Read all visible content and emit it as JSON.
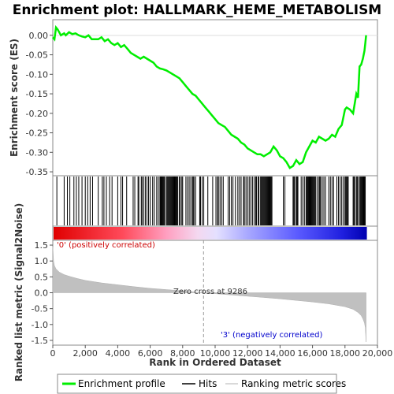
{
  "chart_data": [
    {
      "type": "line",
      "title": "Enrichment plot: HALLMARK_HEME_METABOLISM",
      "ylabel": "Enrichment score (ES)",
      "ylim": [
        -0.36,
        0.04
      ],
      "yticks": [
        0.0,
        -0.05,
        -0.1,
        -0.15,
        -0.2,
        -0.25,
        -0.3,
        -0.35
      ],
      "ytick_labels": [
        "0.00",
        "-0.05",
        "-0.10",
        "-0.15",
        "-0.20",
        "-0.25",
        "-0.30",
        "-0.35"
      ],
      "color": "#00ee00",
      "series": [
        {
          "name": "Enrichment profile",
          "x": [
            0,
            100,
            200,
            300,
            500,
            700,
            800,
            1000,
            1200,
            1400,
            1600,
            1800,
            2000,
            2200,
            2400,
            2600,
            2800,
            3000,
            3200,
            3400,
            3600,
            3800,
            4000,
            4200,
            4400,
            4600,
            4800,
            5000,
            5200,
            5400,
            5600,
            5800,
            6000,
            6200,
            6400,
            6600,
            6800,
            7000,
            7200,
            7400,
            7600,
            7800,
            8000,
            8200,
            8400,
            8600,
            8800,
            9000,
            9200,
            9400,
            9600,
            9800,
            10000,
            10200,
            10400,
            10600,
            10800,
            11000,
            11200,
            11400,
            11600,
            11800,
            12000,
            12200,
            12400,
            12600,
            12800,
            13000,
            13200,
            13400,
            13600,
            13800,
            14000,
            14200,
            14400,
            14600,
            14800,
            15000,
            15200,
            15400,
            15600,
            15800,
            16000,
            16200,
            16400,
            16600,
            16800,
            17000,
            17200,
            17400,
            17600,
            17800,
            18000,
            18100,
            18300,
            18500,
            18700,
            18800,
            18900,
            19000,
            19100,
            19200,
            19250,
            19300
          ],
          "y": [
            -0.005,
            -0.01,
            0.02,
            0.015,
            0.0,
            0.005,
            0.0,
            0.008,
            0.003,
            0.005,
            0.0,
            -0.003,
            -0.005,
            0.0,
            -0.01,
            -0.01,
            -0.01,
            -0.005,
            -0.015,
            -0.01,
            -0.02,
            -0.025,
            -0.02,
            -0.03,
            -0.025,
            -0.035,
            -0.045,
            -0.05,
            -0.055,
            -0.06,
            -0.055,
            -0.06,
            -0.065,
            -0.07,
            -0.08,
            -0.085,
            -0.087,
            -0.09,
            -0.095,
            -0.1,
            -0.105,
            -0.11,
            -0.12,
            -0.13,
            -0.14,
            -0.15,
            -0.155,
            -0.165,
            -0.175,
            -0.185,
            -0.195,
            -0.205,
            -0.215,
            -0.225,
            -0.23,
            -0.235,
            -0.245,
            -0.255,
            -0.26,
            -0.265,
            -0.275,
            -0.28,
            -0.29,
            -0.295,
            -0.3,
            -0.305,
            -0.305,
            -0.31,
            -0.305,
            -0.3,
            -0.285,
            -0.295,
            -0.31,
            -0.315,
            -0.325,
            -0.34,
            -0.335,
            -0.32,
            -0.33,
            -0.325,
            -0.3,
            -0.285,
            -0.27,
            -0.275,
            -0.26,
            -0.265,
            -0.27,
            -0.265,
            -0.255,
            -0.26,
            -0.24,
            -0.23,
            -0.19,
            -0.185,
            -0.19,
            -0.2,
            -0.15,
            -0.16,
            -0.08,
            -0.075,
            -0.06,
            -0.04,
            -0.02,
            0.0
          ]
        }
      ]
    },
    {
      "type": "scatter",
      "series": [
        {
          "name": "Hits",
          "x": [
            250,
            700,
            900,
            1050,
            1300,
            1450,
            1600,
            1800,
            2000,
            2150,
            2300,
            2450,
            2800,
            3050,
            3150,
            3300,
            3500,
            3650,
            4000,
            4200,
            4300,
            4550,
            4950,
            5050,
            5250,
            5300,
            5450,
            5500,
            5600,
            5700,
            5800,
            5900,
            6000,
            6150,
            6250,
            6400,
            6500,
            6600,
            6650,
            6700,
            6750,
            6800,
            6850,
            6900,
            7000,
            7050,
            7100,
            7150,
            7200,
            7250,
            7300,
            7350,
            7400,
            7450,
            7500,
            7550,
            7600,
            7650,
            7700,
            7800,
            7850,
            7950,
            8000,
            8200,
            8300,
            8400,
            8500,
            8600,
            8650,
            8700,
            8800,
            9050,
            9100,
            9200,
            9300,
            9550,
            9850,
            10050,
            10150,
            10200,
            10300,
            10400,
            10500,
            10800,
            10900,
            11000,
            11100,
            11250,
            11400,
            11500,
            11600,
            11750,
            11800,
            11900,
            12000,
            12100,
            12200,
            12300,
            12400,
            12500,
            12550,
            12650,
            12700,
            12800,
            12850,
            12900,
            12950,
            13000,
            13050,
            13100,
            13150,
            13200,
            13250,
            13300,
            13350,
            13400,
            13450,
            13500,
            14200,
            14300,
            14800,
            14850,
            14900,
            15000,
            15050,
            15100,
            15300,
            15400,
            15500,
            15600,
            15650,
            15700,
            15750,
            15800,
            15850,
            15900,
            15950,
            16000,
            16050,
            16100,
            16150,
            16200,
            16300,
            16400,
            16450,
            16500,
            16600,
            16700,
            16800,
            17000,
            17100,
            17200,
            17300,
            17500,
            17600,
            17700,
            17800,
            17900,
            18000,
            18050,
            18100,
            18150,
            18200,
            18500,
            18550,
            18600,
            18700,
            18750,
            18800,
            18900,
            18950,
            19000,
            19050,
            19100,
            19150,
            19200,
            19250
          ]
        }
      ]
    },
    {
      "type": "area",
      "ylabel": "Ranked list metric (Signal2Noise)",
      "xlabel": "Rank in Ordered Dataset",
      "xlim": [
        0,
        20000
      ],
      "ylim": [
        -1.65,
        1.65
      ],
      "xticks": [
        0,
        2000,
        4000,
        6000,
        8000,
        10000,
        12000,
        14000,
        16000,
        18000,
        20000
      ],
      "xtick_labels": [
        "0",
        "2,000",
        "4,000",
        "6,000",
        "8,000",
        "10,000",
        "12,000",
        "14,000",
        "16,000",
        "18,000",
        "20,000"
      ],
      "yticks": [
        1.5,
        1.0,
        0.5,
        0.0,
        -0.5,
        -1.0,
        -1.5
      ],
      "ytick_labels": [
        "1.5",
        "1.0",
        "0.5",
        "0.0",
        "-0.5",
        "-1.0",
        "-1.5"
      ],
      "series": [
        {
          "name": "Ranking metric scores",
          "x": [
            0,
            50,
            100,
            200,
            400,
            700,
            1000,
            1500,
            2000,
            3000,
            4000,
            5000,
            6000,
            7000,
            8000,
            9000,
            9286,
            10000,
            11000,
            12000,
            13000,
            14000,
            15000,
            16000,
            17000,
            18000,
            18500,
            18800,
            19000,
            19100,
            19200,
            19250,
            19300
          ],
          "values": [
            1.45,
            1.0,
            0.85,
            0.75,
            0.65,
            0.57,
            0.52,
            0.45,
            0.39,
            0.31,
            0.25,
            0.19,
            0.14,
            0.1,
            0.06,
            0.01,
            0.0,
            -0.03,
            -0.07,
            -0.11,
            -0.15,
            -0.19,
            -0.24,
            -0.29,
            -0.35,
            -0.44,
            -0.52,
            -0.62,
            -0.72,
            -0.82,
            -0.95,
            -1.1,
            -1.55
          ]
        }
      ],
      "annotations": {
        "positive": "'0' (positively correlated)",
        "zero_cross": "Zero cross at 9286",
        "negative": "'3' (negatively correlated)"
      },
      "zero_cross_x": 9286
    }
  ],
  "legend": {
    "items": [
      {
        "label": "Enrichment profile",
        "color": "#00ee00"
      },
      {
        "label": "Hits",
        "color": "#000000"
      },
      {
        "label": "Ranking metric scores",
        "color": "#cccccc"
      }
    ]
  },
  "colors": {
    "positive": "#ff0000",
    "negative": "#0000ff",
    "positive_text": "#cc0000",
    "negative_text": "#0000cc",
    "metric_fill": "#c0c0c0"
  }
}
